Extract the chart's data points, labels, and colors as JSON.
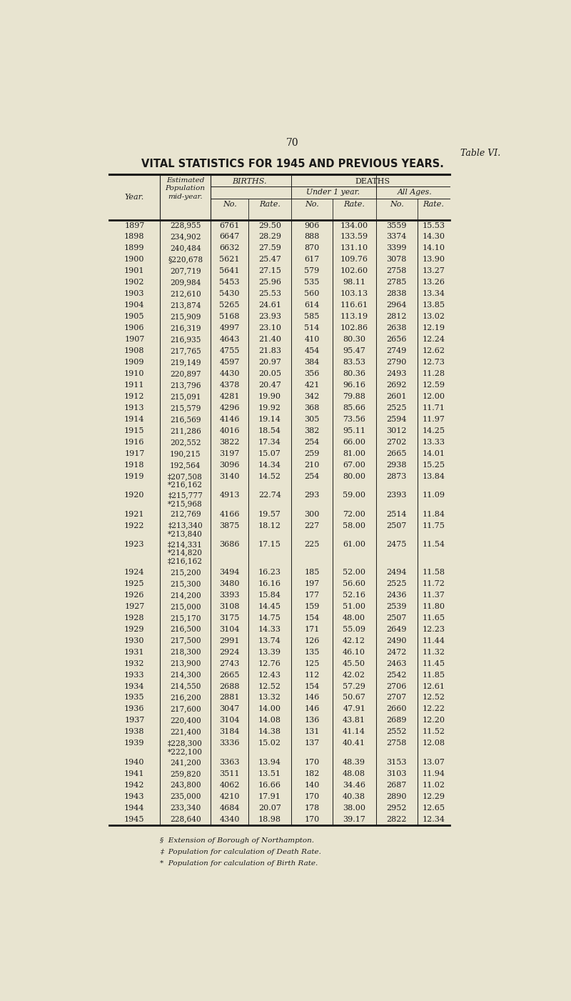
{
  "page_number": "70",
  "table_ref": "Table VI.",
  "title": "VITAL STATISTICS FOR 1945 AND PREVIOUS YEARS.",
  "bg_color": "#e8e4d0",
  "text_color": "#1a1a1a",
  "footnotes": [
    "§  Extension of Borough of Northampton.",
    "‡  Population for calculation of Death Rate.",
    "*  Population for calculation of Birth Rate."
  ],
  "rows": [
    [
      "1897",
      "228,955",
      "6761",
      "29.50",
      "906",
      "134.00",
      "3559",
      "15.53"
    ],
    [
      "1898",
      "234,902",
      "6647",
      "28.29",
      "888",
      "133.59",
      "3374",
      "14.30"
    ],
    [
      "1899",
      "240,484",
      "6632",
      "27.59",
      "870",
      "131.10",
      "3399",
      "14.10"
    ],
    [
      "1900",
      "§220,678",
      "5621",
      "25.47",
      "617",
      "109.76",
      "3078",
      "13.90"
    ],
    [
      "1901",
      "207,719",
      "5641",
      "27.15",
      "579",
      "102.60",
      "2758",
      "13.27"
    ],
    [
      "1902",
      "209,984",
      "5453",
      "25.96",
      "535",
      "98.11",
      "2785",
      "13.26"
    ],
    [
      "1903",
      "212,610",
      "5430",
      "25.53",
      "560",
      "103.13",
      "2838",
      "13.34"
    ],
    [
      "1904",
      "213,874",
      "5265",
      "24.61",
      "614",
      "116.61",
      "2964",
      "13.85"
    ],
    [
      "1905",
      "215,909",
      "5168",
      "23.93",
      "585",
      "113.19",
      "2812",
      "13.02"
    ],
    [
      "1906",
      "216,319",
      "4997",
      "23.10",
      "514",
      "102.86",
      "2638",
      "12.19"
    ],
    [
      "1907",
      "216,935",
      "4643",
      "21.40",
      "410",
      "80.30",
      "2656",
      "12.24"
    ],
    [
      "1908",
      "217,765",
      "4755",
      "21.83",
      "454",
      "95.47",
      "2749",
      "12.62"
    ],
    [
      "1909",
      "219,149",
      "4597",
      "20.97",
      "384",
      "83.53",
      "2790",
      "12.73"
    ],
    [
      "1910",
      "220,897",
      "4430",
      "20.05",
      "356",
      "80.36",
      "2493",
      "11.28"
    ],
    [
      "1911",
      "213,796",
      "4378",
      "20.47",
      "421",
      "96.16",
      "2692",
      "12.59"
    ],
    [
      "1912",
      "215,091",
      "4281",
      "19.90",
      "342",
      "79.88",
      "2601",
      "12.00"
    ],
    [
      "1913",
      "215,579",
      "4296",
      "19.92",
      "368",
      "85.66",
      "2525",
      "11.71"
    ],
    [
      "1914",
      "216,569",
      "4146",
      "19.14",
      "305",
      "73.56",
      "2594",
      "11.97"
    ],
    [
      "1915",
      "211,286",
      "4016",
      "18.54",
      "382",
      "95.11",
      "3012",
      "14.25"
    ],
    [
      "1916",
      "202,552",
      "3822",
      "17.34",
      "254",
      "66.00",
      "2702",
      "13.33"
    ],
    [
      "1917",
      "190,215",
      "3197",
      "15.07",
      "259",
      "81.00",
      "2665",
      "14.01"
    ],
    [
      "1918",
      "192,564",
      "3096",
      "14.34",
      "210",
      "67.00",
      "2938",
      "15.25"
    ],
    [
      "1919",
      "‡207,508\n*216,162",
      "3140",
      "14.52",
      "254",
      "80.00",
      "2873",
      "13.84"
    ],
    [
      "1920",
      "‡215,777\n*215,968",
      "4913",
      "22.74",
      "293",
      "59.00",
      "2393",
      "11.09"
    ],
    [
      "1921",
      "212,769",
      "4166",
      "19.57",
      "300",
      "72.00",
      "2514",
      "11.84"
    ],
    [
      "1922",
      "‡213,340\n*213,840",
      "3875",
      "18.12",
      "227",
      "58.00",
      "2507",
      "11.75"
    ],
    [
      "1923",
      "‡214,331\n*214,820\n‡216,162",
      "3686",
      "17.15",
      "225",
      "61.00",
      "2475",
      "11.54"
    ],
    [
      "1924",
      "215,200",
      "3494",
      "16.23",
      "185",
      "52.00",
      "2494",
      "11.58"
    ],
    [
      "1925",
      "215,300",
      "3480",
      "16.16",
      "197",
      "56.60",
      "2525",
      "11.72"
    ],
    [
      "1926",
      "214,200",
      "3393",
      "15.84",
      "177",
      "52.16",
      "2436",
      "11.37"
    ],
    [
      "1927",
      "215,000",
      "3108",
      "14.45",
      "159",
      "51.00",
      "2539",
      "11.80"
    ],
    [
      "1928",
      "215,170",
      "3175",
      "14.75",
      "154",
      "48.00",
      "2507",
      "11.65"
    ],
    [
      "1929",
      "216,500",
      "3104",
      "14.33",
      "171",
      "55.09",
      "2649",
      "12.23"
    ],
    [
      "1930",
      "217,500",
      "2991",
      "13.74",
      "126",
      "42.12",
      "2490",
      "11.44"
    ],
    [
      "1931",
      "218,300",
      "2924",
      "13.39",
      "135",
      "46.10",
      "2472",
      "11.32"
    ],
    [
      "1932",
      "213,900",
      "2743",
      "12.76",
      "125",
      "45.50",
      "2463",
      "11.45"
    ],
    [
      "1933",
      "214,300",
      "2665",
      "12.43",
      "112",
      "42.02",
      "2542",
      "11.85"
    ],
    [
      "1934",
      "214,550",
      "2688",
      "12.52",
      "154",
      "57.29",
      "2706",
      "12.61"
    ],
    [
      "1935",
      "216,200",
      "2881",
      "13.32",
      "146",
      "50.67",
      "2707",
      "12.52"
    ],
    [
      "1936",
      "217,600",
      "3047",
      "14.00",
      "146",
      "47.91",
      "2660",
      "12.22"
    ],
    [
      "1937",
      "220,400",
      "3104",
      "14.08",
      "136",
      "43.81",
      "2689",
      "12.20"
    ],
    [
      "1938",
      "221,400",
      "3184",
      "14.38",
      "131",
      "41.14",
      "2552",
      "11.52"
    ],
    [
      "1939",
      "‡228,300\n*222,100",
      "3336",
      "15.02",
      "137",
      "40.41",
      "2758",
      "12.08"
    ],
    [
      "1940",
      "241,200",
      "3363",
      "13.94",
      "170",
      "48.39",
      "3153",
      "13.07"
    ],
    [
      "1941",
      "259,820",
      "3511",
      "13.51",
      "182",
      "48.08",
      "3103",
      "11.94"
    ],
    [
      "1942",
      "243,800",
      "4062",
      "16.66",
      "140",
      "34.46",
      "2687",
      "11.02"
    ],
    [
      "1943",
      "235,000",
      "4210",
      "17.91",
      "170",
      "40.38",
      "2890",
      "12.29"
    ],
    [
      "1944",
      "233,340",
      "4684",
      "20.07",
      "178",
      "38.00",
      "2952",
      "12.65"
    ],
    [
      "1945",
      "228,640",
      "4340",
      "18.98",
      "170",
      "39.17",
      "2822",
      "12.34"
    ]
  ]
}
